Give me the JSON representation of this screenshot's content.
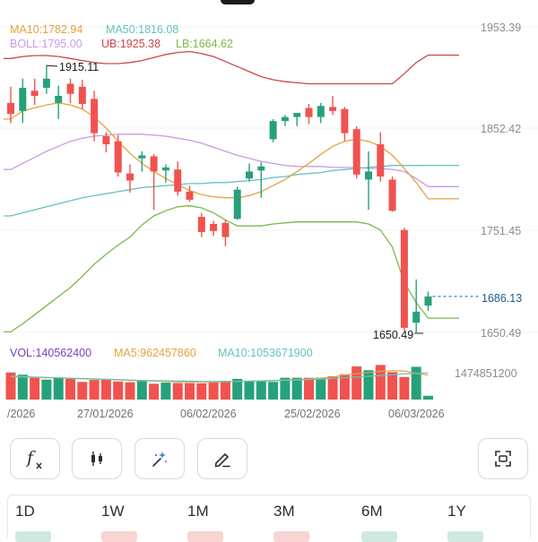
{
  "indicators": {
    "ma10": "MA10:1782.94",
    "ma50": "MA50:1816.08",
    "boll": "BOLL:1795.00",
    "ub": "UB:1925.38",
    "lb": "LB:1664.62"
  },
  "annotations": {
    "high": "1915.11",
    "low": "1650.49",
    "last_price": "1686.13"
  },
  "volume_legend": {
    "vol": "VOL:140562400",
    "ma5": "MA5:962457860",
    "ma10": "MA10:1053671900",
    "axis_max": "1474851200"
  },
  "colors": {
    "up": "#26a17b",
    "down": "#f0534f",
    "ma10": "#e6a23c",
    "ma50": "#64c3c0",
    "boll": "#c79be8",
    "ub": "#c9474b",
    "lb": "#7cb84a",
    "vol_text": "#7a3fb8",
    "last_price": "#1b5e8c"
  },
  "chart_data": {
    "type": "candlestick",
    "y_ticks": [
      "1953.39",
      "1852.42",
      "1751.45",
      "1650.49"
    ],
    "ylim": [
      1650.49,
      1953.39
    ],
    "x_ticks": [
      "/2026",
      "27/01/2026",
      "06/02/2026",
      "25/02/2026",
      "06/03/2026"
    ],
    "candles": [
      {
        "o": 1878,
        "h": 1894,
        "l": 1858,
        "c": 1867
      },
      {
        "o": 1870,
        "h": 1902,
        "l": 1858,
        "c": 1893
      },
      {
        "o": 1890,
        "h": 1902,
        "l": 1876,
        "c": 1885
      },
      {
        "o": 1893,
        "h": 1915.11,
        "l": 1887,
        "c": 1902
      },
      {
        "o": 1878,
        "h": 1895,
        "l": 1862,
        "c": 1885
      },
      {
        "o": 1897,
        "h": 1902,
        "l": 1878,
        "c": 1887
      },
      {
        "o": 1894,
        "h": 1901,
        "l": 1872,
        "c": 1877
      },
      {
        "o": 1882,
        "h": 1890,
        "l": 1840,
        "c": 1848
      },
      {
        "o": 1845,
        "h": 1849,
        "l": 1829,
        "c": 1837
      },
      {
        "o": 1840,
        "h": 1846,
        "l": 1805,
        "c": 1809
      },
      {
        "o": 1808,
        "h": 1817,
        "l": 1789,
        "c": 1801
      },
      {
        "o": 1823,
        "h": 1830,
        "l": 1810,
        "c": 1826
      },
      {
        "o": 1825,
        "h": 1827,
        "l": 1772,
        "c": 1810
      },
      {
        "o": 1811,
        "h": 1817,
        "l": 1799,
        "c": 1814
      },
      {
        "o": 1812,
        "h": 1820,
        "l": 1786,
        "c": 1790
      },
      {
        "o": 1790,
        "h": 1796,
        "l": 1780,
        "c": 1782
      },
      {
        "o": 1765,
        "h": 1769,
        "l": 1745,
        "c": 1750
      },
      {
        "o": 1758,
        "h": 1761,
        "l": 1746,
        "c": 1751
      },
      {
        "o": 1759,
        "h": 1762,
        "l": 1736,
        "c": 1745
      },
      {
        "o": 1763,
        "h": 1795,
        "l": 1762,
        "c": 1792
      },
      {
        "o": 1803,
        "h": 1818,
        "l": 1800,
        "c": 1810
      },
      {
        "o": 1811,
        "h": 1819,
        "l": 1784,
        "c": 1815
      },
      {
        "o": 1842,
        "h": 1862,
        "l": 1839,
        "c": 1860
      },
      {
        "o": 1860,
        "h": 1866,
        "l": 1855,
        "c": 1864
      },
      {
        "o": 1864,
        "h": 1868,
        "l": 1855,
        "c": 1868
      },
      {
        "o": 1873,
        "h": 1877,
        "l": 1857,
        "c": 1864
      },
      {
        "o": 1864,
        "h": 1878,
        "l": 1858,
        "c": 1875
      },
      {
        "o": 1874,
        "h": 1885,
        "l": 1866,
        "c": 1870
      },
      {
        "o": 1872,
        "h": 1874,
        "l": 1840,
        "c": 1848
      },
      {
        "o": 1852,
        "h": 1855,
        "l": 1803,
        "c": 1807
      },
      {
        "o": 1802,
        "h": 1830,
        "l": 1772,
        "c": 1810
      },
      {
        "o": 1837,
        "h": 1849,
        "l": 1800,
        "c": 1805
      },
      {
        "o": 1802,
        "h": 1805,
        "l": 1770,
        "c": 1771
      },
      {
        "o": 1752,
        "h": 1754,
        "l": 1652,
        "c": 1655
      },
      {
        "o": 1660,
        "h": 1703,
        "l": 1650.49,
        "c": 1671
      },
      {
        "o": 1677,
        "h": 1691,
        "l": 1672,
        "c": 1686.13
      }
    ],
    "ma10": [
      1862,
      1870,
      1873,
      1876,
      1878,
      1876,
      1872,
      1864,
      1853,
      1840,
      1828,
      1818,
      1810,
      1803,
      1797,
      1791,
      1787,
      1785,
      1784,
      1784,
      1786,
      1790,
      1796,
      1802,
      1810,
      1818,
      1827,
      1835,
      1840,
      1842,
      1840,
      1835,
      1826,
      1813,
      1799,
      1782.94
    ],
    "ma50": [
      1766,
      1769,
      1772,
      1775,
      1778,
      1781,
      1784,
      1786,
      1788,
      1790,
      1792,
      1794,
      1795,
      1796,
      1797,
      1798,
      1798,
      1799,
      1799,
      1800,
      1801,
      1802,
      1804,
      1805,
      1807,
      1808,
      1809,
      1811,
      1812,
      1813,
      1814,
      1815,
      1816,
      1816,
      1816,
      1816.08
    ],
    "boll": [
      1812,
      1818,
      1824,
      1830,
      1835,
      1840,
      1843,
      1845,
      1846,
      1847,
      1847,
      1847,
      1846,
      1845,
      1843,
      1841,
      1838,
      1834,
      1830,
      1826,
      1823,
      1820,
      1818,
      1816,
      1815,
      1815,
      1815,
      1814,
      1814,
      1814,
      1813,
      1813,
      1812,
      1810,
      1803,
      1795.0
    ],
    "ub": [
      1922,
      1924,
      1925,
      1925,
      1924,
      1922,
      1920,
      1918,
      1917,
      1917,
      1918,
      1920,
      1923,
      1926,
      1928,
      1929,
      1927,
      1924,
      1919,
      1914,
      1909,
      1904,
      1901,
      1899,
      1898,
      1897,
      1897,
      1897,
      1897,
      1897,
      1897,
      1897,
      1897,
      1907,
      1918,
      1925.38
    ],
    "lb": [
      1651,
      1659,
      1668,
      1677,
      1686,
      1695,
      1706,
      1718,
      1728,
      1737,
      1745,
      1757,
      1766,
      1771,
      1775,
      1776,
      1774,
      1769,
      1762,
      1756,
      1756,
      1756,
      1758,
      1759,
      1760,
      1760,
      1760,
      1760,
      1760,
      1760,
      1758,
      1752,
      1735,
      1700,
      1680,
      1664.62
    ],
    "volume": [
      0.72,
      0.66,
      0.58,
      0.53,
      0.58,
      0.55,
      0.47,
      0.52,
      0.53,
      0.48,
      0.46,
      0.49,
      0.42,
      0.45,
      0.44,
      0.44,
      0.43,
      0.47,
      0.5,
      0.55,
      0.48,
      0.5,
      0.47,
      0.58,
      0.58,
      0.58,
      0.58,
      0.62,
      0.67,
      0.88,
      0.78,
      0.92,
      0.73,
      0.6,
      0.87,
      0.1
    ],
    "vol_ma5": [
      0.6,
      0.6,
      0.59,
      0.58,
      0.58,
      0.56,
      0.55,
      0.54,
      0.53,
      0.52,
      0.51,
      0.5,
      0.49,
      0.48,
      0.47,
      0.47,
      0.46,
      0.46,
      0.47,
      0.48,
      0.49,
      0.5,
      0.51,
      0.52,
      0.53,
      0.55,
      0.57,
      0.6,
      0.65,
      0.69,
      0.72,
      0.75,
      0.77,
      0.76,
      0.7,
      0.65
    ],
    "vol_ma10": [
      0.62,
      0.61,
      0.6,
      0.59,
      0.58,
      0.57,
      0.56,
      0.55,
      0.54,
      0.53,
      0.52,
      0.51,
      0.5,
      0.5,
      0.49,
      0.49,
      0.48,
      0.48,
      0.48,
      0.48,
      0.49,
      0.49,
      0.5,
      0.51,
      0.52,
      0.53,
      0.54,
      0.56,
      0.58,
      0.6,
      0.62,
      0.64,
      0.66,
      0.68,
      0.7,
      0.71
    ]
  },
  "toolbar": {
    "buttons": [
      {
        "name": "function",
        "icon": "fx-icon",
        "label": "f"
      },
      {
        "name": "chart-type",
        "icon": "candlestick-icon"
      },
      {
        "name": "ai-magic",
        "icon": "magic-wand-icon"
      },
      {
        "name": "draw",
        "icon": "pencil-icon"
      },
      {
        "name": "fullscreen",
        "icon": "focus-frame-icon"
      }
    ]
  },
  "periods": [
    "1D",
    "1W",
    "1M",
    "3M",
    "6M",
    "1Y"
  ]
}
